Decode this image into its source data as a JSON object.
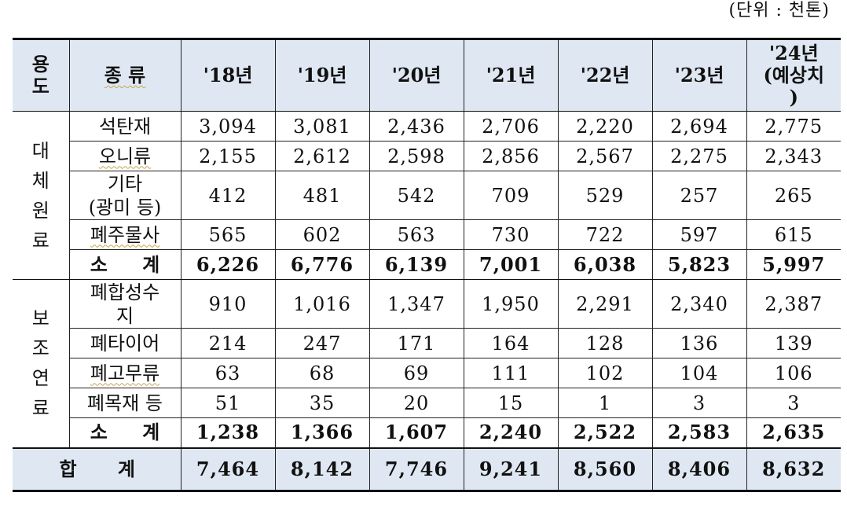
{
  "unit_note": "(단위 : 천톤)",
  "table": {
    "headers": {
      "usage": "용\n도",
      "type": "종 류",
      "years": [
        "'18년",
        "'19년",
        "'20년",
        "'21년",
        "'22년",
        "'23년",
        "'24년\n(예상치\n)"
      ]
    },
    "groups": [
      {
        "category": "대\n체\n원\n료",
        "rows": [
          {
            "name": "석탄재",
            "values": [
              "3,094",
              "3,081",
              "2,436",
              "2,706",
              "2,220",
              "2,694",
              "2,775"
            ]
          },
          {
            "name": "오니류",
            "values": [
              "2,155",
              "2,612",
              "2,598",
              "2,856",
              "2,567",
              "2,275",
              "2,343"
            ]
          },
          {
            "name": "기타\n(광미 등)",
            "values": [
              "412",
              "481",
              "542",
              "709",
              "529",
              "257",
              "265"
            ]
          },
          {
            "name": "폐주물사",
            "values": [
              "565",
              "602",
              "563",
              "730",
              "722",
              "597",
              "615"
            ]
          }
        ],
        "subtotal": {
          "name": "소 계",
          "values": [
            "6,226",
            "6,776",
            "6,139",
            "7,001",
            "6,038",
            "5,823",
            "5,997"
          ]
        }
      },
      {
        "category": "보\n조\n연\n료",
        "rows": [
          {
            "name": "폐합성수\n지",
            "values": [
              "910",
              "1,016",
              "1,347",
              "1,950",
              "2,291",
              "2,340",
              "2,387"
            ]
          },
          {
            "name": "폐타이어",
            "values": [
              "214",
              "247",
              "171",
              "164",
              "128",
              "136",
              "139"
            ]
          },
          {
            "name": "폐고무류",
            "values": [
              "63",
              "68",
              "69",
              "111",
              "102",
              "104",
              "106"
            ]
          },
          {
            "name": "폐목재 등",
            "values": [
              "51",
              "35",
              "20",
              "15",
              "1",
              "3",
              "3"
            ]
          }
        ],
        "subtotal": {
          "name": "소 계",
          "values": [
            "1,238",
            "1,366",
            "1,607",
            "2,240",
            "2,522",
            "2,583",
            "2,635"
          ]
        }
      }
    ],
    "total": {
      "name": "합 계",
      "values": [
        "7,464",
        "8,142",
        "7,746",
        "9,241",
        "8,560",
        "8,406",
        "8,632"
      ]
    }
  }
}
